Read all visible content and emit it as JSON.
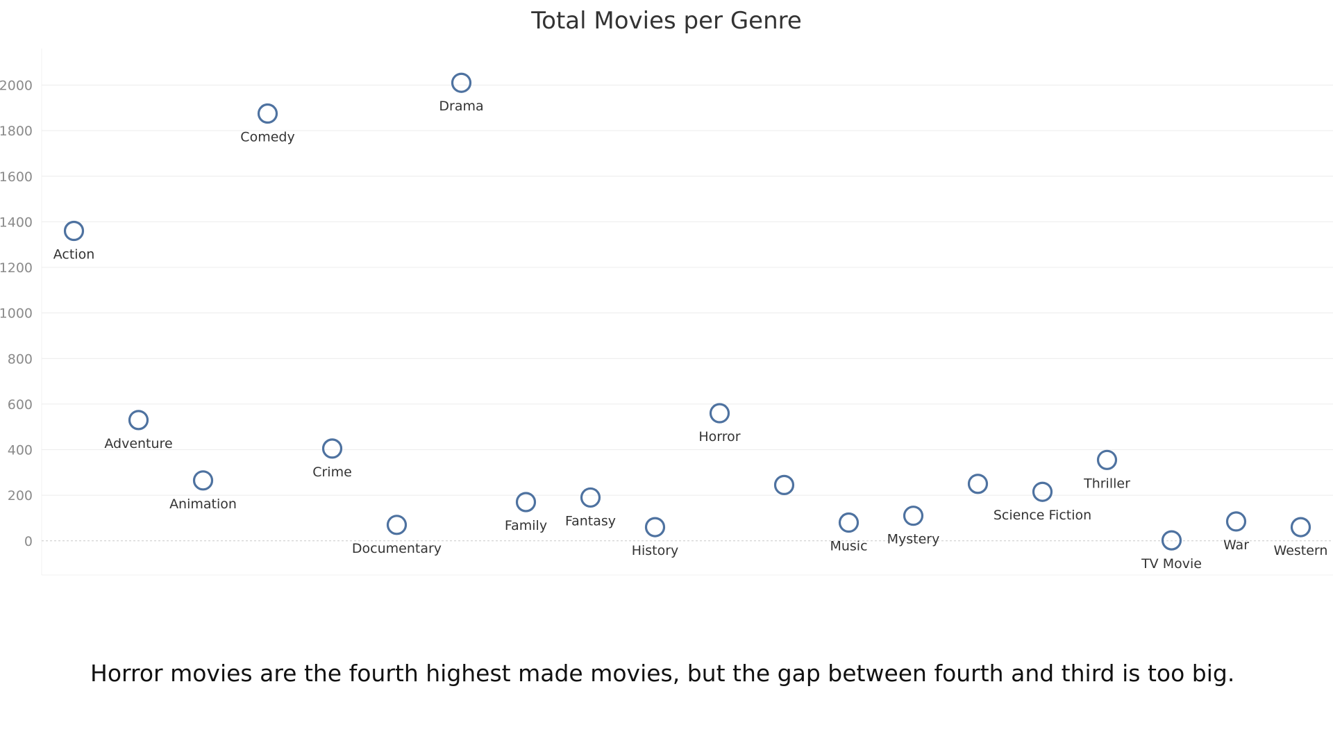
{
  "caption": "Horror movies are the fourth highest made movies, but the gap between fourth and third is too big.",
  "chart_data": {
    "type": "scatter",
    "title": "Total Movies per  Genre",
    "xlabel": "",
    "ylabel": "",
    "ylim": [
      -150,
      2160
    ],
    "y_ticks": [
      0,
      200,
      400,
      600,
      800,
      1000,
      1200,
      1400,
      1600,
      1800,
      2000
    ],
    "grid": true,
    "legend": "none",
    "marker": "open-circle",
    "point_color": "#4e72a0",
    "categories": [
      "Action",
      "Adventure",
      "Animation",
      "Comedy",
      "Crime",
      "Documentary",
      "Drama",
      "Family",
      "Fantasy",
      "History",
      "Horror",
      "",
      "Music",
      "Mystery",
      "",
      "Science Fiction",
      "Thriller",
      "TV Movie",
      "War",
      "Western"
    ],
    "values": [
      1360,
      530,
      265,
      1875,
      405,
      70,
      2010,
      170,
      190,
      60,
      560,
      245,
      80,
      110,
      250,
      215,
      355,
      2,
      85,
      60
    ]
  }
}
